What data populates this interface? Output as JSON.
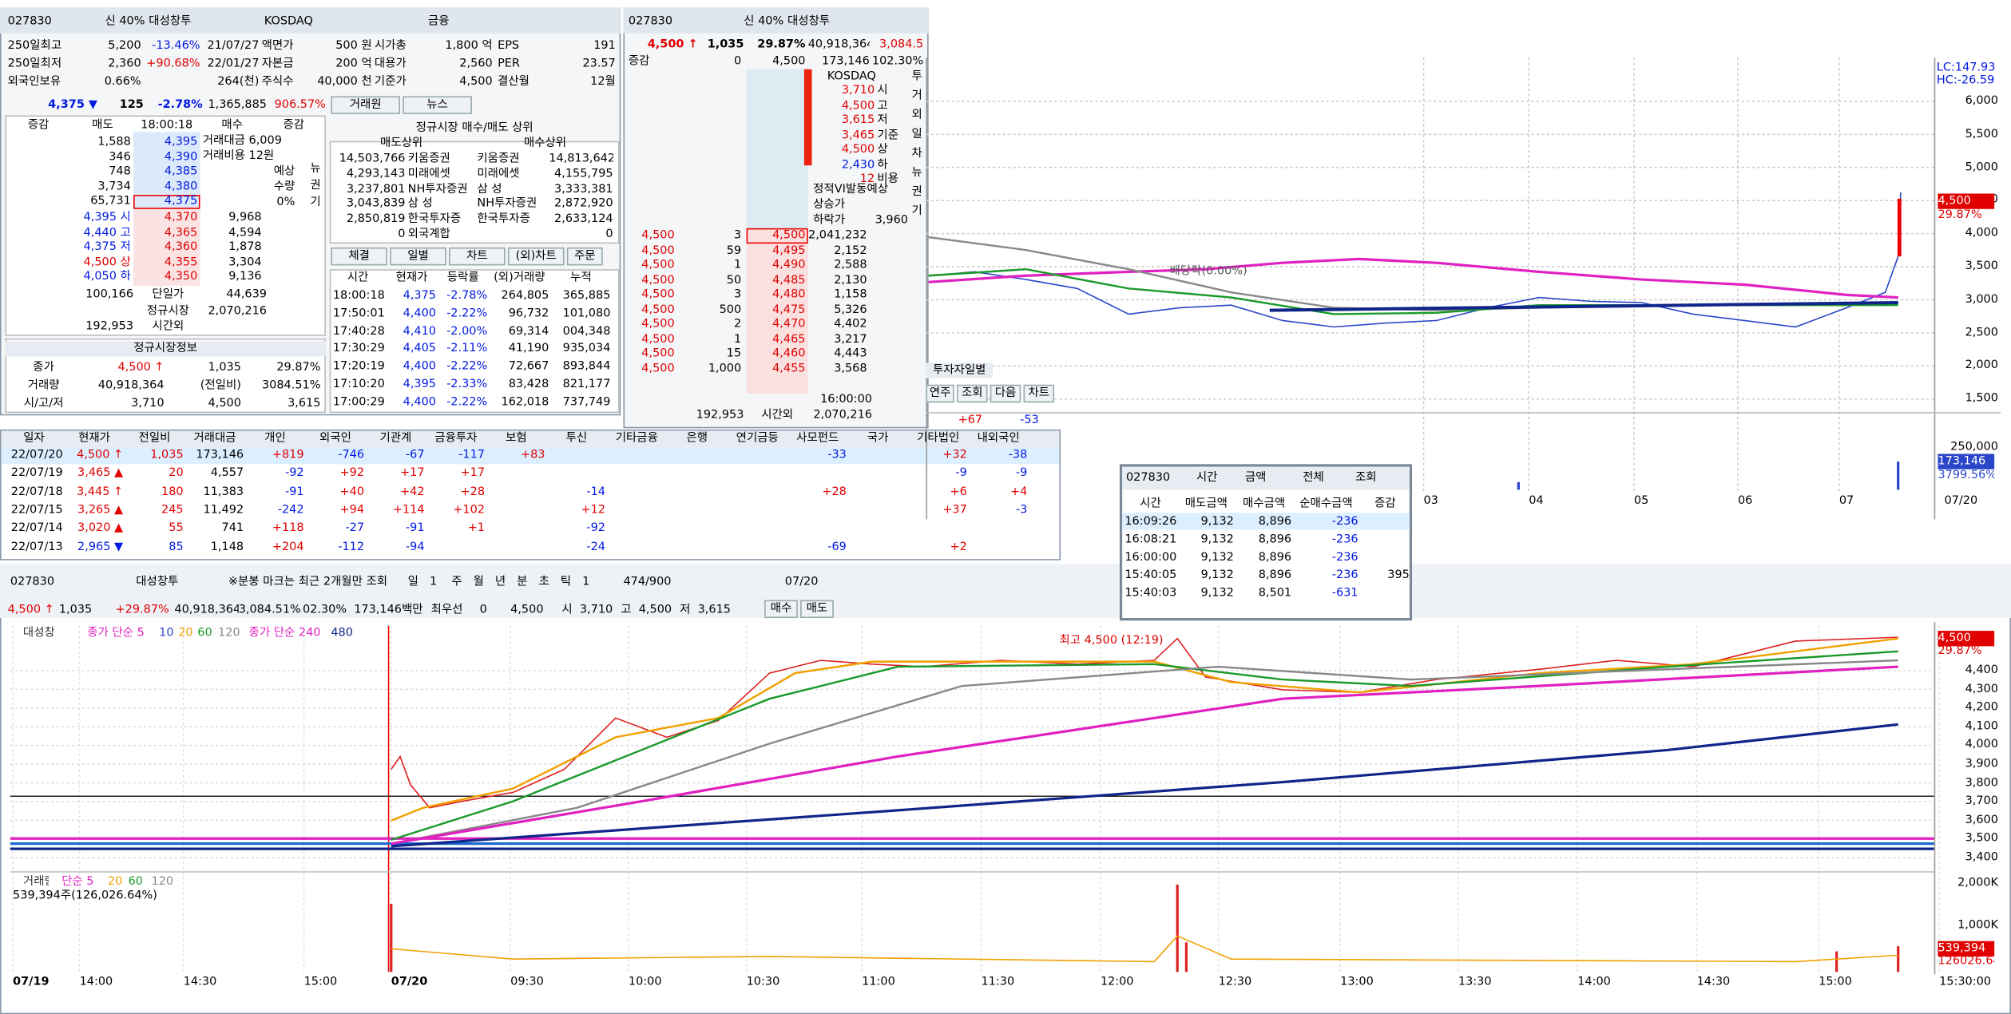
{
  "left": {
    "toolbar": [
      "027830",
      "신",
      "40%",
      "대성창투",
      "KOSDAQ",
      "금융"
    ],
    "stats": [
      [
        "250일최고",
        "5,200",
        "-13.46%",
        "21/07/27",
        "액면가",
        "500 원",
        "시가총",
        "1,800 억",
        "EPS",
        "191"
      ],
      [
        "250일최저",
        "2,360",
        "+90.68%",
        "22/01/27",
        "자본금",
        "200 억",
        "대용가",
        "2,560",
        "PER",
        "23.57"
      ],
      [
        "외국인보유",
        "0.66%",
        null,
        "264(천)",
        "주식수",
        "40,000 천",
        "기준가",
        "4,500",
        "결산월",
        "12월"
      ]
    ],
    "quote": [
      "4,375 ▼",
      "125",
      "-2.78%",
      "1,365,885",
      "906.57%"
    ],
    "book_header": [
      "증감",
      "매도",
      "18:00:18",
      "매수",
      "증감"
    ],
    "asks": [
      [
        "1,588",
        "4,395"
      ],
      [
        "346",
        "4,390"
      ],
      [
        "748",
        "4,385"
      ],
      [
        "3,734",
        "4,380"
      ],
      [
        "65,731",
        "4,375"
      ]
    ],
    "ask_side": [
      "거래대금 6,009",
      "거래비용 12원",
      "예상",
      "수량",
      "0%"
    ],
    "side_tabs": [
      "뉴",
      "권",
      "기"
    ],
    "bids": [
      [
        "4,395 시",
        "4,370",
        "9,968"
      ],
      [
        "4,440 고",
        "4,365",
        "4,594"
      ],
      [
        "4,375 저",
        "4,360",
        "1,878"
      ],
      [
        "4,500 상",
        "4,355",
        "3,304"
      ],
      [
        "4,050 하",
        "4,350",
        "9,136"
      ]
    ],
    "totals": [
      [
        "100,166",
        "단일가",
        "44,639"
      ],
      [
        null,
        "정규시장",
        "2,070,216"
      ],
      [
        "192,953",
        "시간외",
        null
      ]
    ],
    "regular_title": "정규시장정보",
    "regular": [
      [
        "종가",
        "4,500 ↑",
        "1,035",
        "29.87%"
      ],
      [
        "거래량",
        "40,918,364",
        "(전일비)",
        "3084.51%"
      ],
      [
        "시/고/저",
        "3,710",
        "4,500",
        "3,615"
      ]
    ],
    "tabs": [
      "거래원",
      "뉴스"
    ],
    "broker_title": "정규시장 매수/매도 상위",
    "broker_header": [
      "매도상위",
      "매수상위"
    ],
    "brokers": [
      [
        "14,503,766",
        "키움증권",
        "키움증권",
        "14,813,642"
      ],
      [
        "4,293,143",
        "미래에셋",
        "미래에셋",
        "4,155,795"
      ],
      [
        "3,237,801",
        "NH투자증권",
        "삼 성",
        "3,333,381"
      ],
      [
        "3,043,839",
        "삼 성",
        "NH투자증권",
        "2,872,920"
      ],
      [
        "2,850,819",
        "한국투자증",
        "한국투자증",
        "2,633,124"
      ],
      [
        "0",
        "외국계합",
        null,
        "0"
      ]
    ],
    "trade_tabs": [
      "체결",
      "일별",
      "차트",
      "(외)차트",
      "주문"
    ],
    "trade_header": [
      "시간",
      "현재가",
      "등락률",
      "(외)거래량",
      "누적"
    ],
    "trades": [
      [
        "18:00:18",
        "4,375",
        "-2.78%",
        "264,805",
        "365,885"
      ],
      [
        "17:50:01",
        "4,400",
        "-2.22%",
        "96,732",
        "101,080"
      ],
      [
        "17:40:28",
        "4,410",
        "-2.00%",
        "69,314",
        "004,348"
      ],
      [
        "17:30:29",
        "4,405",
        "-2.11%",
        "41,190",
        "935,034"
      ],
      [
        "17:20:19",
        "4,400",
        "-2.22%",
        "72,667",
        "893,844"
      ],
      [
        "17:10:20",
        "4,395",
        "-2.33%",
        "83,428",
        "821,177"
      ],
      [
        "17:00:29",
        "4,400",
        "-2.22%",
        "162,018",
        "737,749"
      ]
    ]
  },
  "book": {
    "toolbar": [
      "027830",
      "신",
      "40%",
      "대성창투"
    ],
    "quote": [
      "4,500 ↑",
      "1,035",
      "29.87%",
      "40,918,364",
      "3,084.5"
    ],
    "sub": [
      "증감",
      "0",
      "4,500",
      "173,146",
      "102.30%"
    ],
    "market": "KOSDAQ",
    "levels": [
      [
        "3,710",
        "시"
      ],
      [
        "4,500",
        "고"
      ],
      [
        "3,615",
        "저"
      ],
      [
        "3,465",
        "기준"
      ],
      [
        "4,500",
        "상"
      ],
      [
        "2,430",
        "하"
      ],
      [
        "12",
        "비용"
      ]
    ],
    "vi": [
      "정적VI발동예상",
      "상승가",
      "하락가",
      "3,960"
    ],
    "side_tabs": [
      "투",
      "거",
      "외",
      "일",
      "차",
      "뉴",
      "권",
      "기"
    ],
    "bids": [
      [
        "4,500",
        "3",
        "4,500",
        "2,041,232"
      ],
      [
        "4,500",
        "59",
        "4,495",
        "2,152"
      ],
      [
        "4,500",
        "1",
        "4,490",
        "2,588"
      ],
      [
        "4,500",
        "50",
        "4,485",
        "2,130"
      ],
      [
        "4,500",
        "3",
        "4,480",
        "1,158"
      ],
      [
        "4,500",
        "500",
        "4,475",
        "5,326"
      ],
      [
        "4,500",
        "2",
        "4,470",
        "4,402"
      ],
      [
        "4,500",
        "1",
        "4,465",
        "3,217"
      ],
      [
        "4,500",
        "15",
        "4,460",
        "4,443"
      ],
      [
        "4,500",
        "1,000",
        "4,455",
        "3,568"
      ]
    ],
    "footer": [
      "16:00:00",
      "2,070,216",
      "192,953",
      "시간외"
    ]
  },
  "daily": {
    "tab": "투자자일별",
    "buttons": [
      "연주",
      "조회",
      "다음",
      "차트"
    ],
    "summary": [
      "+67",
      "-53"
    ],
    "header": [
      "일자",
      "현재가",
      "전일비",
      "거래대금",
      "개인",
      "외국인",
      "기관계",
      "금융투자",
      "보험",
      "투신",
      "기타금융",
      "은행",
      "연기금등",
      "사모펀드",
      "국가",
      "기타법인",
      "내외국인"
    ],
    "rows": [
      [
        "22/07/20",
        "4,500 ↑",
        "1,035",
        "173,146",
        "+819",
        "-746",
        "-67",
        "-117",
        "+83",
        null,
        null,
        null,
        null,
        "-33",
        null,
        "+32",
        "-38"
      ],
      [
        "22/07/19",
        "3,465 ▲",
        "20",
        "4,557",
        "-92",
        "+92",
        "+17",
        "+17",
        null,
        null,
        null,
        null,
        null,
        null,
        null,
        "-9",
        "-9"
      ],
      [
        "22/07/18",
        "3,445 ↑",
        "180",
        "11,383",
        "-91",
        "+40",
        "+42",
        "+28",
        null,
        "-14",
        null,
        null,
        null,
        "+28",
        null,
        "+6",
        "+4"
      ],
      [
        "22/07/15",
        "3,265 ▲",
        "245",
        "11,492",
        "-242",
        "+94",
        "+114",
        "+102",
        null,
        "+12",
        null,
        null,
        null,
        null,
        null,
        "+37",
        "-3"
      ],
      [
        "22/07/14",
        "3,020 ▲",
        "55",
        "741",
        "+118",
        "-27",
        "-91",
        "+1",
        null,
        "-92",
        null,
        null,
        null,
        null,
        null,
        null,
        null
      ],
      [
        "22/07/13",
        "2,965 ▼",
        "85",
        "1,148",
        "+204",
        "-112",
        "-94",
        null,
        null,
        "-24",
        null,
        null,
        null,
        "-69",
        null,
        "+2",
        null
      ]
    ]
  },
  "popup": {
    "toolbar": [
      "027830",
      "시간",
      "금액",
      "전체",
      "조회"
    ],
    "header": [
      "시간",
      "매도금액",
      "매수금액",
      "순매수금액",
      "증감"
    ],
    "rows": [
      [
        "16:09:26",
        "9,132",
        "8,896",
        "-236",
        null
      ],
      [
        "16:08:21",
        "9,132",
        "8,896",
        "-236",
        null
      ],
      [
        "16:00:00",
        "9,132",
        "8,896",
        "-236",
        null
      ],
      [
        "15:40:05",
        "9,132",
        "8,896",
        "-236",
        "395"
      ],
      [
        "15:40:03",
        "9,132",
        "8,501",
        "-631",
        null
      ]
    ]
  },
  "upper_chart": {
    "info": [
      "LC:147.93",
      "HC:-26.59"
    ],
    "yticks": [
      "6,000",
      "5,500",
      "5,000",
      "4,500",
      "4,000",
      "3,500",
      "3,000",
      "2,500",
      "2,000",
      "1,500"
    ],
    "price_tag": [
      "4,500",
      "29.87%"
    ],
    "annotation": "배당락(0.00%)",
    "volume_ticks": [
      "250,000",
      "173,146",
      "3799.56%"
    ],
    "xticks": [
      "03",
      "04",
      "05",
      "06",
      "07",
      "07/20"
    ]
  },
  "lower_chart": {
    "toolbar": [
      "027830",
      "대성창투",
      "※분봉 마크는 최근 2개월만 조회",
      "일",
      "1",
      "주",
      "월",
      "년",
      "분",
      "초",
      "틱",
      "1",
      "474/900",
      "07/20"
    ],
    "quote": [
      "4,500 ↑",
      "1,035",
      "+29.87%",
      "40,918,364",
      "3,084.51%",
      "02.30%",
      "173,146백만",
      "최우선",
      "0",
      "4,500",
      "시",
      "3,710",
      "고",
      "4,500",
      "저",
      "3,615"
    ],
    "order_buttons": [
      "매수",
      "매도"
    ],
    "legend": [
      "대성창투",
      "종가 단순 5",
      "10",
      "20",
      "60",
      "120",
      "종가 단순 240",
      "480"
    ],
    "annotation": "최고 4,500 (12:19)",
    "price_tag": [
      "4,500",
      "29.87%"
    ],
    "yticks": [
      "4,400",
      "4,300",
      "4,200",
      "4,100",
      "4,000",
      "3,900",
      "3,800",
      "3,700",
      "3,600",
      "3,500",
      "3,400"
    ],
    "volume_legend": [
      "거래량",
      "단순 5",
      "20",
      "60",
      "120"
    ],
    "volume_info": "539,394주(126,026.64%)",
    "volume_ticks": [
      "2,000K",
      "1,000K",
      "539,394",
      "126026.64"
    ],
    "xticks": [
      "07/19",
      "14:00",
      "14:30",
      "15:00",
      "07/20",
      "09:30",
      "10:00",
      "10:30",
      "11:00",
      "11:30",
      "12:00",
      "12:30",
      "13:00",
      "13:30",
      "14:00",
      "14:30",
      "15:00",
      "15:30:00"
    ]
  }
}
